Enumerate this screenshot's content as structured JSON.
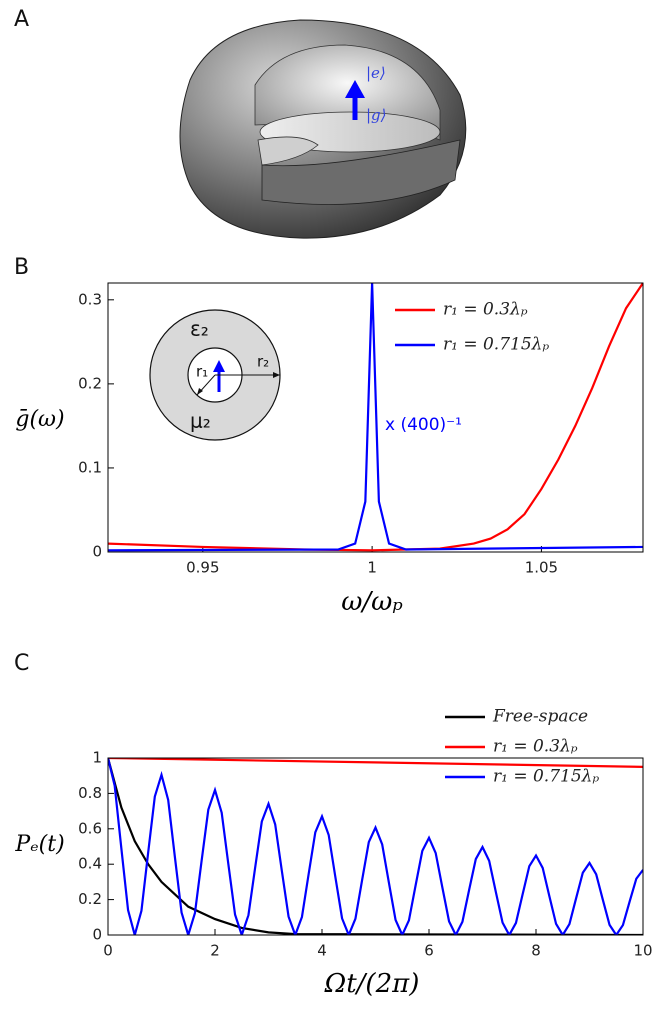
{
  "figure": {
    "panel_labels": [
      "A",
      "B",
      "C"
    ],
    "illustration": {
      "upper_state": "|e⟩",
      "lower_state": "|g⟩"
    },
    "inset": {
      "outer_permittivity": "ε₂",
      "outer_permeability": "μ₂",
      "inner_radius": "r₁",
      "outer_radius": "r₂"
    }
  },
  "chart_data": [
    {
      "type": "line",
      "x_label": "ω/ωₚ",
      "y_label": "ḡ(ω)",
      "annotation": "x (400)⁻¹",
      "xlim": [
        0.922,
        1.08
      ],
      "ylim": [
        0,
        0.32
      ],
      "xticks": [
        0.95,
        1,
        1.05
      ],
      "yticks": [
        0,
        0.1,
        0.2,
        0.3
      ],
      "legend": "upper right",
      "series": [
        {
          "name": "r₁ = 0.3λₚ",
          "color": "#ff0000",
          "x": [
            0.922,
            0.95,
            0.98,
            1.0,
            1.02,
            1.03,
            1.035,
            1.04,
            1.045,
            1.05,
            1.055,
            1.06,
            1.065,
            1.07,
            1.075,
            1.08
          ],
          "values": [
            0.01,
            0.006,
            0.003,
            0.002,
            0.004,
            0.01,
            0.016,
            0.027,
            0.045,
            0.075,
            0.11,
            0.15,
            0.195,
            0.245,
            0.29,
            0.32
          ]
        },
        {
          "name": "r₁ = 0.715λₚ",
          "color": "#0000ff",
          "x": [
            0.922,
            0.99,
            0.995,
            0.998,
            1.0,
            1.002,
            1.005,
            1.01,
            1.08
          ],
          "values": [
            0.002,
            0.003,
            0.01,
            0.06,
            0.32,
            0.06,
            0.01,
            0.003,
            0.006
          ]
        }
      ]
    },
    {
      "type": "line",
      "x_label": "Ωt/(2π)",
      "y_label": "Pₑ(t)",
      "xlim": [
        0,
        10
      ],
      "ylim": [
        0,
        1
      ],
      "xticks": [
        0,
        2,
        4,
        6,
        8,
        10
      ],
      "yticks": [
        0,
        0.2,
        0.4,
        0.6,
        0.8,
        1
      ],
      "legend": "upper right",
      "series": [
        {
          "name": "Free-space",
          "color": "#000000",
          "x": [
            0,
            0.25,
            0.5,
            0.75,
            1,
            1.5,
            2,
            2.5,
            3,
            3.5,
            10
          ],
          "values": [
            1,
            0.72,
            0.53,
            0.4,
            0.3,
            0.16,
            0.09,
            0.04,
            0.015,
            0.005,
            0
          ]
        },
        {
          "name": "r₁ = 0.3λₚ",
          "color": "#ff0000",
          "x": [
            0,
            10
          ],
          "values": [
            1,
            0.95
          ]
        },
        {
          "name": "r₁ = 0.715λₚ",
          "color": "#0000ff",
          "x": [
            0,
            0.125,
            0.25,
            0.375,
            0.5,
            0.625,
            0.75,
            0.875,
            1,
            1.125,
            1.25,
            1.375,
            1.5,
            1.625,
            1.75,
            1.875,
            2,
            2.125,
            2.25,
            2.375,
            2.5,
            2.625,
            2.75,
            2.875,
            3,
            3.125,
            3.25,
            3.375,
            3.5,
            3.625,
            3.75,
            3.875,
            4,
            4.125,
            4.25,
            4.375,
            4.5,
            4.625,
            4.75,
            4.875,
            5,
            5.125,
            5.25,
            5.375,
            5.5,
            5.625,
            5.75,
            5.875,
            6,
            6.125,
            6.25,
            6.375,
            6.5,
            6.625,
            6.75,
            6.875,
            7,
            7.125,
            7.25,
            7.375,
            7.5,
            7.625,
            7.75,
            7.875,
            8,
            8.125,
            8.25,
            8.375,
            8.5,
            8.625,
            8.75,
            8.875,
            9,
            9.125,
            9.25,
            9.375,
            9.5,
            9.625,
            9.75,
            9.875,
            10
          ],
          "values": [
            1,
            0.843,
            0.488,
            0.141,
            0,
            0.137,
            0.464,
            0.782,
            0.905,
            0.763,
            0.441,
            0.127,
            0,
            0.124,
            0.42,
            0.708,
            0.819,
            0.691,
            0.399,
            0.115,
            0,
            0.112,
            0.38,
            0.641,
            0.741,
            0.625,
            0.361,
            0.104,
            0,
            0.102,
            0.344,
            0.58,
            0.67,
            0.565,
            0.327,
            0.094,
            0,
            0.092,
            0.311,
            0.525,
            0.607,
            0.512,
            0.296,
            0.085,
            0,
            0.083,
            0.281,
            0.475,
            0.549,
            0.463,
            0.268,
            0.077,
            0,
            0.075,
            0.255,
            0.429,
            0.497,
            0.419,
            0.242,
            0.07,
            0,
            0.068,
            0.23,
            0.389,
            0.449,
            0.379,
            0.219,
            0.063,
            0,
            0.062,
            0.208,
            0.352,
            0.407,
            0.343,
            0.198,
            0.057,
            0,
            0.056,
            0.189,
            0.318,
            0.368
          ]
        }
      ]
    }
  ]
}
